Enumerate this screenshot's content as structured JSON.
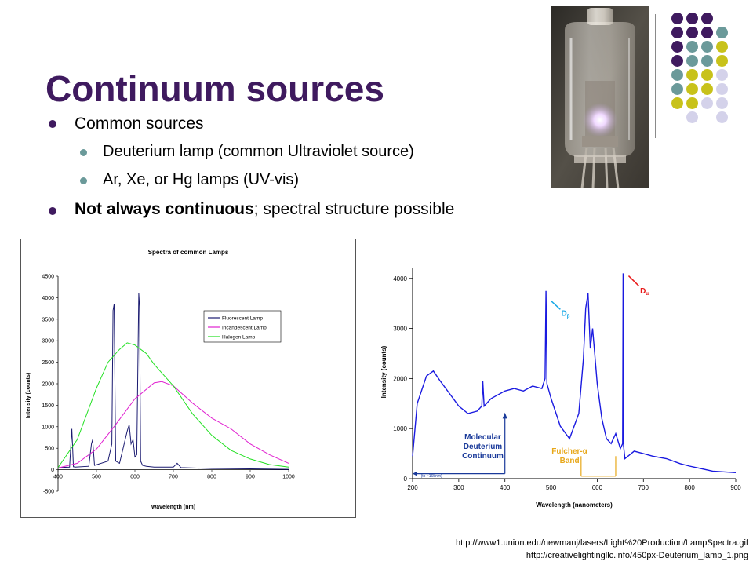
{
  "slide": {
    "title": "Continuum sources",
    "bullets": {
      "b1": "Common sources",
      "b1a": "Deuterium lamp (common Ultraviolet source)",
      "b1b": "Ar, Xe, or Hg lamps (UV-vis)",
      "b2_bold": "Not always continuous",
      "b2_rest": "; spectral structure possible"
    },
    "sources": [
      "http://www1.union.edu/newmanj/lasers/Light%20Production/LampSpectra.gif",
      "http://creativelightingllc.info/450px-Deuterium_lamp_1.png"
    ],
    "colors": {
      "title": "#3f1a5f",
      "bullet_primary": "#3f1a5f",
      "bullet_secondary": "#6b9a9a",
      "dot_purple": "#3f1a5f",
      "dot_teal": "#6b9a9a",
      "dot_yellow": "#c8c21a",
      "dot_lavender": "#d4d2ea"
    }
  },
  "chart_data": [
    {
      "type": "line",
      "title": "Spectra of common Lamps",
      "xlabel": "Wavelength (nm)",
      "ylabel": "Intensity (counts)",
      "xlim": [
        400,
        1000
      ],
      "ylim": [
        -500,
        4500
      ],
      "xticks": [
        400,
        500,
        600,
        700,
        800,
        900,
        1000
      ],
      "yticks": [
        -500,
        0,
        500,
        1000,
        1500,
        2000,
        2500,
        3000,
        3500,
        4000,
        4500
      ],
      "legend": "top-right",
      "series": [
        {
          "name": "Fluorescent Lamp",
          "color": "#1a1a70",
          "x": [
            400,
            430,
            436,
            440,
            445,
            480,
            487,
            490,
            495,
            530,
            540,
            543,
            546,
            550,
            560,
            580,
            585,
            590,
            595,
            600,
            605,
            610,
            612,
            615,
            620,
            630,
            650,
            700,
            710,
            720,
            800,
            900,
            1000
          ],
          "y": [
            50,
            60,
            950,
            70,
            60,
            80,
            600,
            700,
            100,
            200,
            600,
            3700,
            3850,
            200,
            150,
            900,
            1050,
            600,
            700,
            300,
            350,
            4100,
            3800,
            200,
            100,
            80,
            60,
            60,
            150,
            50,
            30,
            20,
            10
          ]
        },
        {
          "name": "Incandescent Lamp",
          "color": "#e020d0",
          "x": [
            400,
            450,
            500,
            550,
            600,
            650,
            670,
            700,
            750,
            800,
            850,
            900,
            950,
            1000
          ],
          "y": [
            40,
            150,
            480,
            1050,
            1650,
            2020,
            2050,
            1950,
            1550,
            1200,
            950,
            600,
            350,
            150
          ]
        },
        {
          "name": "Halogen Lamp",
          "color": "#22e022",
          "x": [
            400,
            450,
            500,
            530,
            560,
            580,
            600,
            630,
            650,
            700,
            750,
            800,
            850,
            900,
            950,
            1000
          ],
          "y": [
            50,
            700,
            1900,
            2500,
            2800,
            2950,
            2900,
            2700,
            2450,
            1950,
            1300,
            800,
            450,
            250,
            120,
            60
          ]
        }
      ]
    },
    {
      "type": "line",
      "title": "",
      "xlabel": "Wavelength (nanometers)",
      "ylabel": "Intensity (counts)",
      "xlim": [
        200,
        900
      ],
      "ylim": [
        0,
        4200
      ],
      "xticks": [
        200,
        300,
        400,
        500,
        600,
        700,
        800,
        900
      ],
      "yticks": [
        0,
        1000,
        2000,
        3000,
        4000
      ],
      "series": [
        {
          "color": "#1a1ae0",
          "x": [
            200,
            210,
            230,
            245,
            260,
            280,
            300,
            320,
            340,
            350,
            352,
            355,
            370,
            400,
            420,
            440,
            460,
            480,
            487,
            489,
            491,
            500,
            520,
            540,
            560,
            570,
            575,
            580,
            585,
            590,
            600,
            610,
            620,
            630,
            640,
            650,
            655,
            656,
            657,
            660,
            680,
            700,
            720,
            750,
            780,
            800,
            850,
            900
          ],
          "y": [
            450,
            1500,
            2050,
            2150,
            1950,
            1700,
            1450,
            1300,
            1350,
            1450,
            1950,
            1450,
            1600,
            1750,
            1800,
            1750,
            1850,
            1800,
            2000,
            3750,
            1900,
            1600,
            1050,
            800,
            1300,
            2400,
            3400,
            3700,
            2600,
            3000,
            1900,
            1200,
            800,
            700,
            900,
            600,
            700,
            4100,
            650,
            400,
            550,
            500,
            450,
            400,
            300,
            250,
            150,
            120
          ]
        }
      ],
      "annotations": [
        {
          "text": "D",
          "sub": "β",
          "color": "#19a8e6"
        },
        {
          "text": "D",
          "sub": "α",
          "color": "#e81818"
        },
        {
          "text": "Molecular Deuterium Continuum",
          "color": "#1a3a9a"
        },
        {
          "text": "Fulcher-α Band",
          "color": "#e8a81a"
        },
        {
          "text": "(to ~165nm)",
          "color": "#1a3a9a"
        }
      ]
    }
  ]
}
